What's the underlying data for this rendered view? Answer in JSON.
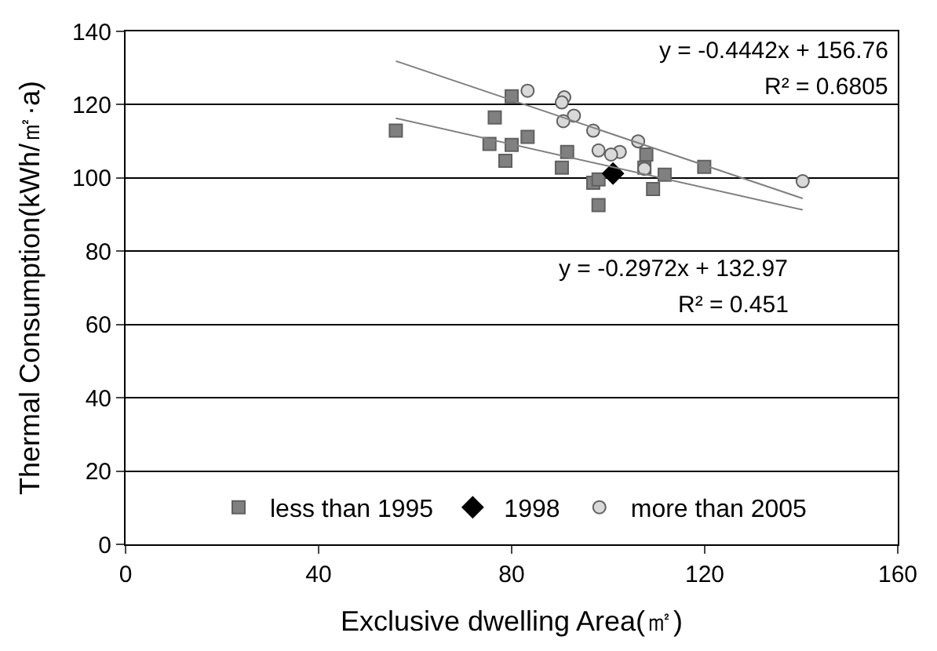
{
  "chart_data": {
    "type": "scatter",
    "xlabel": "Exclusive dwelling Area(㎡)",
    "ylabel": "Thermal Consumption(kWh/㎡·a)",
    "xlim": [
      0,
      160
    ],
    "xticks": [
      0,
      40,
      80,
      120,
      160
    ],
    "ylim": [
      0,
      140
    ],
    "yticks": [
      0,
      20,
      40,
      60,
      80,
      100,
      120,
      140
    ],
    "grid": "y",
    "legend": "bottom",
    "series": [
      {
        "name": "less than 1995",
        "color": "#808080",
        "marker": "square",
        "x": [
          56,
          80,
          76.5,
          75.4,
          80,
          83.3,
          78.7,
          91.5,
          90.4,
          96.9,
          98,
          98,
          107.9,
          107.5,
          111.7,
          109.3,
          119.9
        ],
        "values": [
          112.9,
          122.3,
          116.5,
          109.3,
          109,
          111.2,
          104.7,
          107.1,
          102.8,
          98.7,
          92.6,
          99.6,
          106.4,
          102.8,
          100.9,
          97,
          103
        ]
      },
      {
        "name": "1998",
        "color": "#000000",
        "marker": "diamond",
        "x": [
          101
        ],
        "values": [
          101.2
        ]
      },
      {
        "name": "more than 2005",
        "color": "#d9d9d9",
        "marker": "circle",
        "x": [
          83.3,
          90.9,
          90.4,
          92.9,
          90.7,
          96.9,
          106.2,
          98,
          102.4,
          100.6,
          107.5,
          140.3
        ],
        "values": [
          123.8,
          122,
          120.6,
          117,
          115.5,
          112.9,
          110,
          107.5,
          107.1,
          106.4,
          102.5,
          99.1
        ]
      },
      {
        "type": "line",
        "color": "#808080",
        "marker": "none",
        "x": [
          56,
          140.3
        ],
        "values": [
          131.9,
          94.4
        ]
      },
      {
        "type": "line",
        "color": "#808080",
        "marker": "none",
        "x": [
          56,
          140.3
        ],
        "values": [
          116.3,
          91.3
        ]
      }
    ],
    "annotations": [
      "y = -0.4442x + 156.76",
      "R² = 0.6805",
      "y = -0.2972x + 132.97",
      "R² = 0.451"
    ]
  }
}
